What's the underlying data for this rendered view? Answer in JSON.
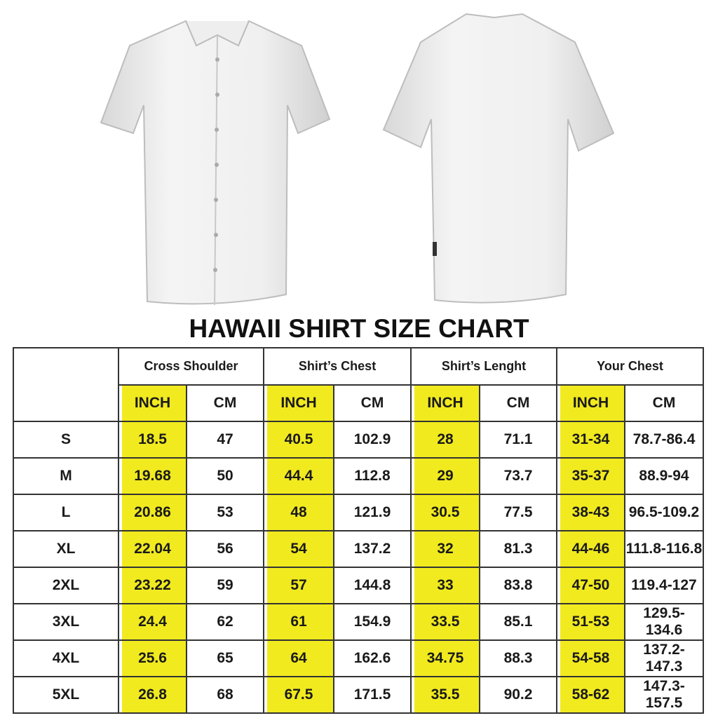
{
  "title": "HAWAII SHIRT SIZE CHART",
  "colors": {
    "highlight": "#f1ea1f",
    "border": "#333333",
    "text": "#1a1a1a"
  },
  "images": {
    "front": "white-shirt-front",
    "back": "white-shirt-back"
  },
  "table": {
    "groups": [
      "Cross Shoulder",
      "Shirt’s Chest",
      "Shirt’s Lenght",
      "Your Chest"
    ],
    "units": [
      "INCH",
      "CM",
      "INCH",
      "CM",
      "INCH",
      "CM",
      "INCH",
      "CM"
    ],
    "rows": [
      [
        "S",
        "18.5",
        "47",
        "40.5",
        "102.9",
        "28",
        "71.1",
        "31-34",
        "78.7-86.4"
      ],
      [
        "M",
        "19.68",
        "50",
        "44.4",
        "112.8",
        "29",
        "73.7",
        "35-37",
        "88.9-94"
      ],
      [
        "L",
        "20.86",
        "53",
        "48",
        "121.9",
        "30.5",
        "77.5",
        "38-43",
        "96.5-109.2"
      ],
      [
        "XL",
        "22.04",
        "56",
        "54",
        "137.2",
        "32",
        "81.3",
        "44-46",
        "111.8-116.8"
      ],
      [
        "2XL",
        "23.22",
        "59",
        "57",
        "144.8",
        "33",
        "83.8",
        "47-50",
        "119.4-127"
      ],
      [
        "3XL",
        "24.4",
        "62",
        "61",
        "154.9",
        "33.5",
        "85.1",
        "51-53",
        "129.5-134.6"
      ],
      [
        "4XL",
        "25.6",
        "65",
        "64",
        "162.6",
        "34.75",
        "88.3",
        "54-58",
        "137.2-147.3"
      ],
      [
        "5XL",
        "26.8",
        "68",
        "67.5",
        "171.5",
        "35.5",
        "90.2",
        "58-62",
        "147.3-157.5"
      ]
    ]
  }
}
